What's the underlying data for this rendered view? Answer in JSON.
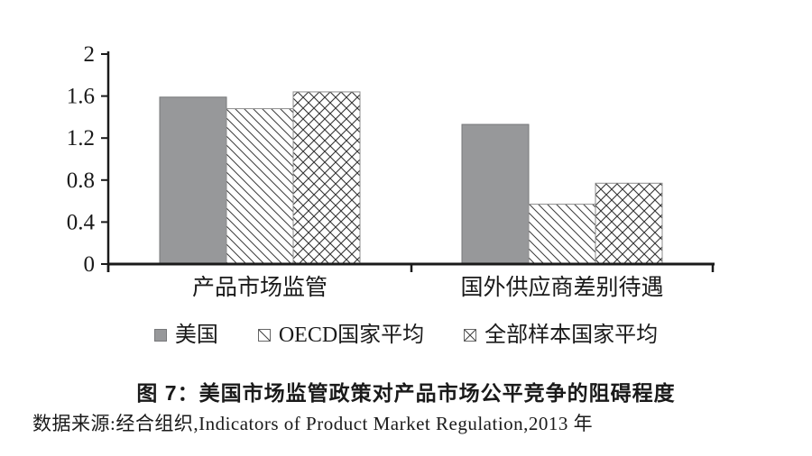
{
  "chart_data": {
    "type": "bar",
    "title": "图 7：美国市场监管政策对产品市场公平竞争的阻碍程度",
    "source": "数据来源:经合组织,Indicators of Product Market Regulation,2013 年",
    "categories": [
      "产品市场监管",
      "国外供应商差别待遇"
    ],
    "series": [
      {
        "name": "美国",
        "pattern": "solid",
        "values": [
          1.59,
          1.33
        ]
      },
      {
        "name": "OECD国家平均",
        "pattern": "diagonal-hatch",
        "values": [
          1.48,
          0.57
        ]
      },
      {
        "name": "全部样本国家平均",
        "pattern": "cross-hatch",
        "values": [
          1.64,
          0.77
        ]
      }
    ],
    "ylim": [
      0,
      2
    ],
    "yticks": [
      0,
      0.4,
      0.8,
      1.2,
      1.6,
      2
    ],
    "ytick_labels": [
      "0",
      "0.4",
      "0.8",
      "1.2",
      "1.6",
      "2"
    ],
    "xlabel": "",
    "ylabel": "",
    "grid": false,
    "legend_position": "bottom",
    "colors": {
      "solid_fill": "#97989a",
      "solid_stroke": "#77787a",
      "hatch_stroke": "#8d8d8d",
      "hatch_line": "#3c3c3c",
      "axis": "#1a1a1a",
      "text": "#1a1a1a",
      "background": "#ffffff"
    }
  }
}
